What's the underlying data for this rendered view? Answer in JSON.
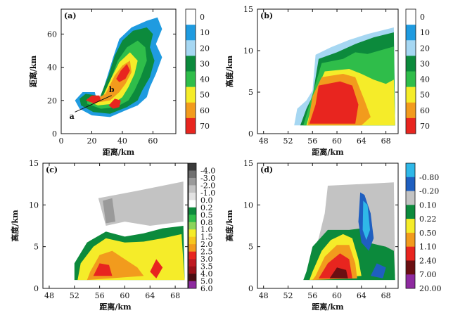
{
  "chart_data": [
    {
      "type": "heatmap",
      "panel_label": "(a)",
      "xlabel": "距离/km",
      "ylabel": "距离/km",
      "xlim": [
        0,
        75
      ],
      "ylim": [
        0,
        75
      ],
      "xticks": [
        "0",
        "20",
        "40",
        "60"
      ],
      "yticks": [
        "0",
        "20",
        "40",
        "60"
      ],
      "annotations": [
        "a",
        "b"
      ],
      "colorbar": [
        "0",
        "10",
        "20",
        "30",
        "40",
        "50",
        "60",
        "70"
      ]
    },
    {
      "type": "heatmap",
      "panel_label": "(b)",
      "xlabel": "距离/km",
      "ylabel": "高度/km",
      "xlim": [
        47,
        70
      ],
      "ylim": [
        0,
        15
      ],
      "xticks": [
        "48",
        "52",
        "56",
        "60",
        "64",
        "68"
      ],
      "yticks": [
        "0",
        "5",
        "10",
        "15"
      ],
      "colorbar": [
        "0",
        "10",
        "20",
        "30",
        "40",
        "50",
        "60",
        "70"
      ]
    },
    {
      "type": "heatmap",
      "panel_label": "(c)",
      "xlabel": "距离/km",
      "ylabel": "高度/km",
      "xlim": [
        47,
        70
      ],
      "ylim": [
        0,
        15
      ],
      "xticks": [
        "48",
        "52",
        "56",
        "60",
        "64",
        "68"
      ],
      "yticks": [
        "0",
        "5",
        "10",
        "15"
      ],
      "colorbar": [
        "-4.0",
        "-3.0",
        "-2.0",
        "-1.0",
        "0.0",
        "0.2",
        "0.5",
        "0.8",
        "1.0",
        "1.5",
        "2.0",
        "2.5",
        "3.0",
        "3.5",
        "4.0",
        "5.0",
        "6.0"
      ]
    },
    {
      "type": "heatmap",
      "panel_label": "(d)",
      "xlabel": "距离/km",
      "ylabel": "高度/km",
      "xlim": [
        47,
        70
      ],
      "ylim": [
        0,
        15
      ],
      "xticks": [
        "48",
        "52",
        "56",
        "60",
        "64",
        "68"
      ],
      "yticks": [
        "0",
        "5",
        "10",
        "15"
      ],
      "colorbar": [
        "-0.80",
        "-0.20",
        "0.10",
        "0.22",
        "0.50",
        "1.10",
        "2.40",
        "7.00",
        "20.00"
      ]
    }
  ],
  "colors": {
    "dbz": [
      "#ffffff",
      "#1f9be0",
      "#a6d7f2",
      "#0c8a3c",
      "#2fbd4a",
      "#f5ec29",
      "#f29b1d",
      "#e8251f",
      "#9a1119",
      "#2a0d0a",
      "#e28ad0"
    ],
    "zdr": [
      "#3a3a3a",
      "#707070",
      "#9a9a9a",
      "#c3c3c3",
      "#e2e2e2",
      "#ffffff",
      "#0c8a3c",
      "#2fbd4a",
      "#8cd45a",
      "#f5ec29",
      "#f7c61e",
      "#f29b1d",
      "#e8251f",
      "#c01a22",
      "#9a1119",
      "#4a0e12",
      "#8e2aa0"
    ],
    "kdp": [
      "#2fb8e8",
      "#1f5fc0",
      "#c3c3c3",
      "#0c8a3c",
      "#f5ec29",
      "#f29b1d",
      "#e8251f",
      "#6a0f12",
      "#8e2aa0"
    ]
  }
}
